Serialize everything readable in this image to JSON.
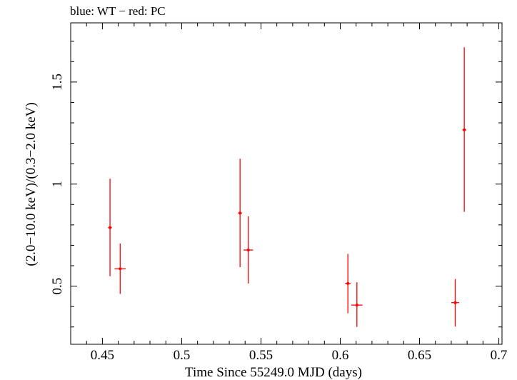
{
  "header": "blue: WT − red: PC",
  "chart_data": {
    "type": "scatter",
    "title": "",
    "xlabel": "Time Since 55249.0 MJD (days)",
    "ylabel": "(2.0−10.0 keV)/(0.3−2.0 keV)",
    "xlim": [
      0.43,
      0.702
    ],
    "ylim": [
      0.215,
      1.79
    ],
    "x_ticks": [
      {
        "value": 0.45,
        "label": "0.45"
      },
      {
        "value": 0.5,
        "label": "0.5"
      },
      {
        "value": 0.55,
        "label": "0.55"
      },
      {
        "value": 0.6,
        "label": "0.6"
      },
      {
        "value": 0.65,
        "label": "0.65"
      },
      {
        "value": 0.7,
        "label": "0.7"
      }
    ],
    "y_ticks": [
      {
        "value": 0.5,
        "label": "0.5"
      },
      {
        "value": 1.0,
        "label": "1"
      },
      {
        "value": 1.5,
        "label": "1.5"
      }
    ],
    "grid": false,
    "series": [
      {
        "name": "PC",
        "color": "#ff0000",
        "points": [
          {
            "x": 0.4548,
            "y": 0.787,
            "xerr": 0.0012,
            "ylo": 0.549,
            "yhi": 1.026
          },
          {
            "x": 0.4612,
            "y": 0.585,
            "xerr": 0.0035,
            "ylo": 0.462,
            "yhi": 0.709
          },
          {
            "x": 0.5368,
            "y": 0.858,
            "xerr": 0.0012,
            "ylo": 0.593,
            "yhi": 1.124
          },
          {
            "x": 0.542,
            "y": 0.677,
            "xerr": 0.003,
            "ylo": 0.513,
            "yhi": 0.842
          },
          {
            "x": 0.6048,
            "y": 0.513,
            "xerr": 0.0018,
            "ylo": 0.367,
            "yhi": 0.658
          },
          {
            "x": 0.6105,
            "y": 0.407,
            "xerr": 0.0035,
            "ylo": 0.3,
            "yhi": 0.519
          },
          {
            "x": 0.6725,
            "y": 0.419,
            "xerr": 0.0025,
            "ylo": 0.302,
            "yhi": 0.535
          },
          {
            "x": 0.6782,
            "y": 1.266,
            "xerr": 0.0012,
            "ylo": 0.864,
            "yhi": 1.67
          }
        ]
      }
    ]
  }
}
